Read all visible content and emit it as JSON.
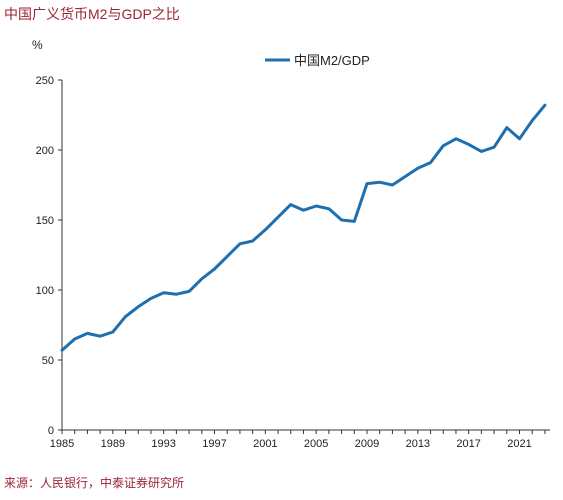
{
  "title": "中国广义货币M2与GDP之比",
  "source": "来源：人民银行，中泰证券研究所",
  "chart_data": {
    "type": "line",
    "unit": "%",
    "x": [
      1985,
      1986,
      1987,
      1988,
      1989,
      1990,
      1991,
      1992,
      1993,
      1994,
      1995,
      1996,
      1997,
      1998,
      1999,
      2000,
      2001,
      2002,
      2003,
      2004,
      2005,
      2006,
      2007,
      2008,
      2009,
      2010,
      2011,
      2012,
      2013,
      2014,
      2015,
      2016,
      2017,
      2018,
      2019,
      2020,
      2021,
      2022,
      2023
    ],
    "series": [
      {
        "name": "中国M2/GDP",
        "color": "#1f6fae",
        "values": [
          57,
          65,
          69,
          67,
          70,
          81,
          88,
          94,
          98,
          97,
          99,
          108,
          115,
          124,
          133,
          135,
          143,
          152,
          161,
          157,
          160,
          158,
          150,
          149,
          176,
          177,
          175,
          181,
          187,
          191,
          203,
          208,
          204,
          199,
          202,
          216,
          208,
          221,
          232
        ]
      }
    ],
    "xticks": [
      1985,
      1989,
      1993,
      1997,
      2001,
      2005,
      2009,
      2013,
      2017,
      2021
    ],
    "xlim": [
      1985,
      2023.4
    ],
    "ylim": [
      0,
      250
    ],
    "yticks": [
      0,
      50,
      100,
      150,
      200,
      250
    ],
    "legend": "top-center",
    "grid": false
  }
}
